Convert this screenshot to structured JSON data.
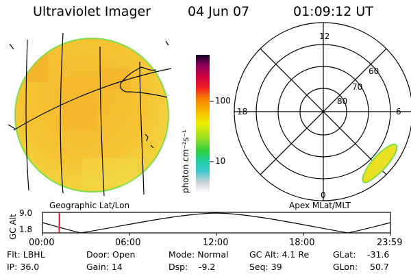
{
  "header": {
    "instrument": "Ultraviolet Imager",
    "date": "04 Jun 07",
    "time": "01:09:12 UT"
  },
  "panels": {
    "left_label": "Geographic Lat/Lon",
    "right_label": "Apex MLat/MLT"
  },
  "colorbar": {
    "unit": "photon cm⁻²s⁻¹",
    "unit_text": "photon cm-2s-1",
    "ticks": [
      "100",
      "10"
    ]
  },
  "polar": {
    "mlt_labels": [
      "12",
      "18",
      "6",
      "0"
    ],
    "mlat_labels": [
      "60",
      "70",
      "80"
    ]
  },
  "orbit": {
    "axis_label": "GC Alt",
    "y_ticks": [
      "9.0",
      "1.8"
    ],
    "x_ticks": [
      "00:00",
      "06:00",
      "12:00",
      "18:00",
      "23:59"
    ],
    "marker_time": "01:09:12",
    "marker_color": "#ff0000"
  },
  "info": {
    "flt": "Flt: LBHL",
    "door": "Door: Open",
    "mode": "Mode: Normal",
    "gc_alt": "GC Alt: 4.1 Re",
    "glat_label": "GLat:",
    "glat_value": "-31.6",
    "ip": "IP: 36.0",
    "gain": "Gain: 14",
    "dsp_label": "Dsp:",
    "dsp_value": "-9.2",
    "seq": "Seq: 39",
    "glon_label": "GLon:",
    "glon_value": "50.7"
  },
  "colors": {
    "disk_fill": "#f5c432",
    "disk_edge": "#7fdc4a",
    "oval_fill": "#e8e020",
    "background": "#ffffff"
  }
}
